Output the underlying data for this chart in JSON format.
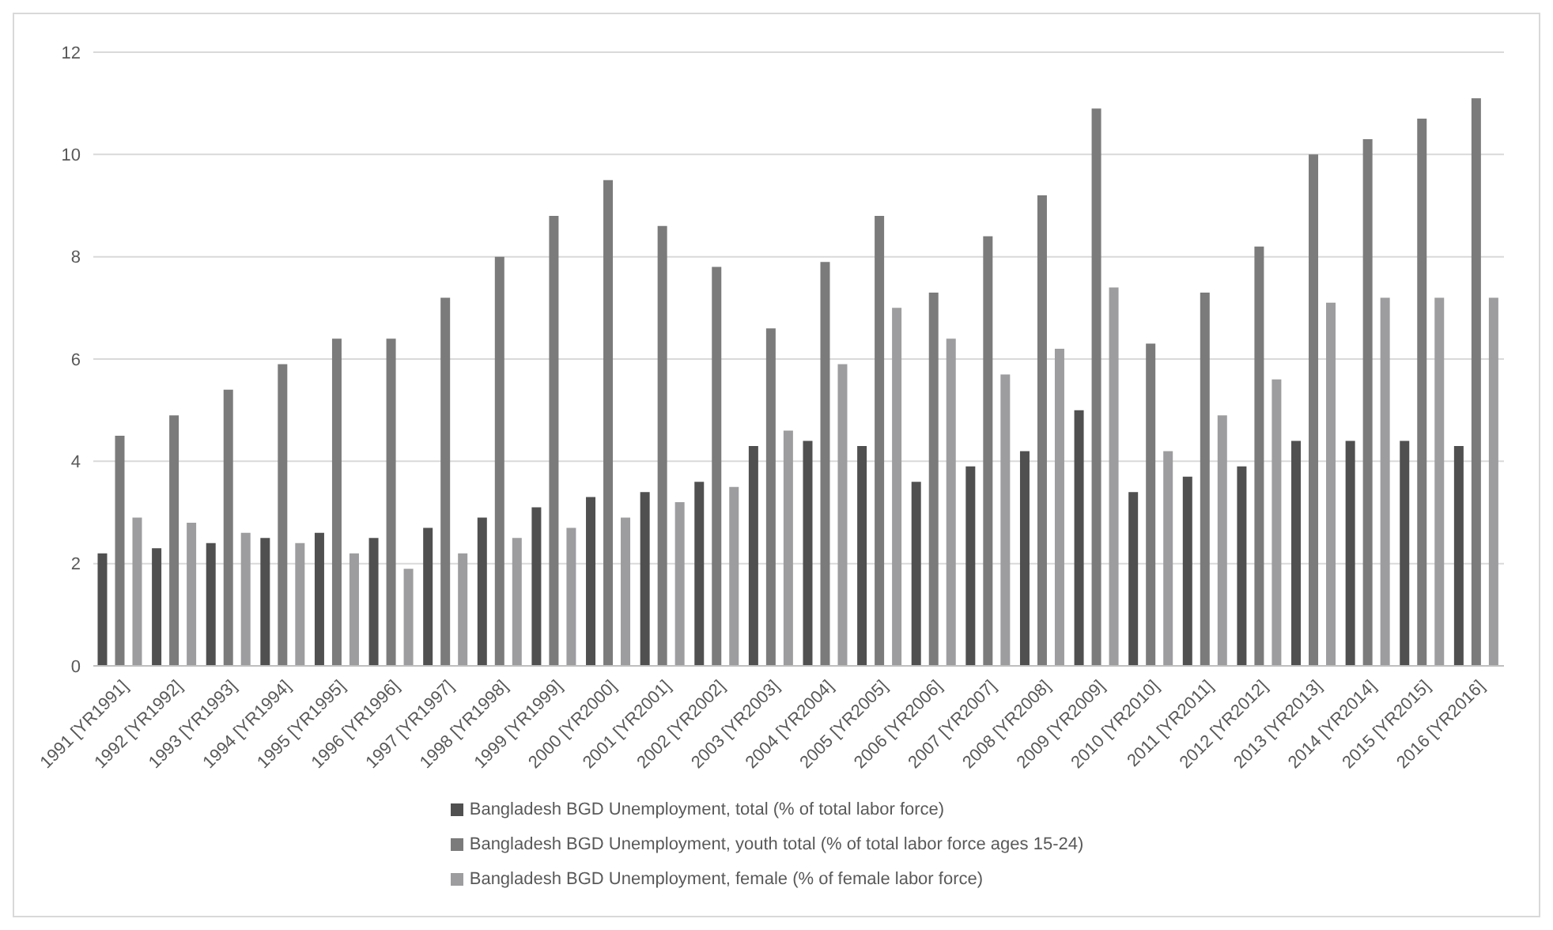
{
  "chart_data": {
    "type": "bar",
    "categories": [
      "1991 [YR1991]",
      "1992 [YR1992]",
      "1993 [YR1993]",
      "1994 [YR1994]",
      "1995 [YR1995]",
      "1996 [YR1996]",
      "1997 [YR1997]",
      "1998 [YR1998]",
      "1999 [YR1999]",
      "2000 [YR2000]",
      "2001 [YR2001]",
      "2002 [YR2002]",
      "2003 [YR2003]",
      "2004 [YR2004]",
      "2005 [YR2005]",
      "2006 [YR2006]",
      "2007 [YR2007]",
      "2008 [YR2008]",
      "2009 [YR2009]",
      "2010 [YR2010]",
      "2011 [YR2011]",
      "2012 [YR2012]",
      "2013 [YR2013]",
      "2014 [YR2014]",
      "2015 [YR2015]",
      "2016 [YR2016]"
    ],
    "series": [
      {
        "name": "Bangladesh BGD Unemployment, total (% of total labor force)",
        "color": "#505050",
        "values": [
          2.2,
          2.3,
          2.4,
          2.5,
          2.6,
          2.5,
          2.7,
          2.9,
          3.1,
          3.3,
          3.4,
          3.6,
          4.3,
          4.4,
          4.3,
          3.6,
          3.9,
          4.2,
          5.0,
          3.4,
          3.7,
          3.9,
          4.4,
          4.4,
          4.4,
          4.3
        ]
      },
      {
        "name": "Bangladesh BGD Unemployment, youth total (% of total labor force ages 15-24)",
        "color": "#7b7b7b",
        "values": [
          4.5,
          4.9,
          5.4,
          5.9,
          6.4,
          6.4,
          7.2,
          8.0,
          8.8,
          9.5,
          8.6,
          7.8,
          6.6,
          7.9,
          8.8,
          7.3,
          8.4,
          9.2,
          10.9,
          6.3,
          7.3,
          8.2,
          10.0,
          10.3,
          10.7,
          11.1
        ]
      },
      {
        "name": "Bangladesh BGD Unemployment, female (% of female labor force)",
        "color": "#9d9da0",
        "values": [
          2.9,
          2.8,
          2.6,
          2.4,
          2.2,
          1.9,
          2.2,
          2.5,
          2.7,
          2.9,
          3.2,
          3.5,
          4.6,
          5.9,
          7.0,
          6.4,
          5.7,
          6.2,
          7.4,
          4.2,
          4.9,
          5.6,
          7.1,
          7.2,
          7.2,
          7.2
        ]
      }
    ],
    "ylim": [
      0,
      12
    ],
    "yticks": [
      0,
      2,
      4,
      6,
      8,
      10,
      12
    ],
    "grid": "y",
    "legend": "bottom"
  }
}
